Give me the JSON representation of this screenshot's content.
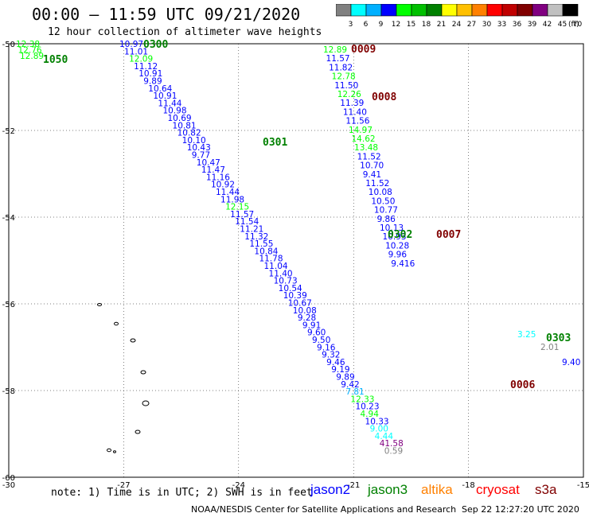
{
  "header": {
    "title": "00:00 – 11:59 UTC 09/21/2020",
    "subtitle": "12 hour collection of altimeter wave heights"
  },
  "colorbar": {
    "colors": [
      "#808080",
      "#00ffff",
      "#00b0ff",
      "#0000ff",
      "#00ff00",
      "#00c000",
      "#008000",
      "#ffff00",
      "#ffc000",
      "#ff8000",
      "#ff0000",
      "#c00000",
      "#800000",
      "#800080",
      "#c0c0c0",
      "#000000"
    ],
    "labels": [
      "3",
      "6",
      "9",
      "12",
      "15",
      "18",
      "21",
      "24",
      "27",
      "30",
      "33",
      "36",
      "39",
      "42",
      "45",
      "70"
    ],
    "unit": "(ft)"
  },
  "axes": {
    "lon_ticks": [
      -30,
      -27,
      -24,
      -21,
      -18,
      -15
    ],
    "lat_ticks": [
      -50,
      -52,
      -54,
      -56,
      -58,
      -60
    ],
    "lon_range": [
      -30,
      -15
    ],
    "lat_range": [
      -60,
      -50
    ]
  },
  "time_labels": [
    {
      "text": "0300",
      "color": "#008000"
    },
    {
      "text": "1050",
      "color": "#008000"
    },
    {
      "text": "0009",
      "color": "#800000"
    },
    {
      "text": "0008",
      "color": "#800000"
    },
    {
      "text": "0301",
      "color": "#008000"
    },
    {
      "text": "0302",
      "color": "#008000"
    },
    {
      "text": "0007",
      "color": "#800000"
    },
    {
      "text": "0303",
      "color": "#008000"
    },
    {
      "text": "0006",
      "color": "#800000"
    }
  ],
  "chart_data": {
    "type": "scatter",
    "title": "12 hour collection of altimeter wave heights",
    "units": "ft",
    "tracks": [
      {
        "name": "track-a",
        "values": [
          "10.97",
          "11.01",
          "12.09",
          "11.12",
          "10.91",
          "9.89",
          "10.64",
          "10.91",
          "11.44",
          "10.98",
          "10.69",
          "10.81",
          "10.82",
          "10.10",
          "10.43",
          "9.77",
          "10.47",
          "11.47",
          "11.16",
          "10.92",
          "11.44",
          "11.98",
          "12.15",
          "11.57",
          "11.54",
          "11.21",
          "11.32",
          "11.55",
          "10.84",
          "11.78",
          "11.04",
          "11.40",
          "10.73",
          "10.54",
          "10.39",
          "10.67",
          "10.08",
          "9.28",
          "9.91",
          "9.60",
          "9.50",
          "9.16",
          "9.32",
          "9.46",
          "9.19",
          "9.89",
          "9.42",
          "7.81",
          "12.33",
          "10.23",
          "4.94",
          "10.33",
          "9.00",
          "4.44",
          "41.58",
          "0.59"
        ],
        "colors": [
          "#0000ff",
          "#0000ff",
          "#00ff00",
          "#0000ff",
          "#0000ff",
          "#0000ff",
          "#0000ff",
          "#0000ff",
          "#0000ff",
          "#0000ff",
          "#0000ff",
          "#0000ff",
          "#0000ff",
          "#0000ff",
          "#0000ff",
          "#0000ff",
          "#0000ff",
          "#0000ff",
          "#0000ff",
          "#0000ff",
          "#0000ff",
          "#0000ff",
          "#00ff00",
          "#0000ff",
          "#0000ff",
          "#0000ff",
          "#0000ff",
          "#0000ff",
          "#0000ff",
          "#0000ff",
          "#0000ff",
          "#0000ff",
          "#0000ff",
          "#0000ff",
          "#0000ff",
          "#0000ff",
          "#0000ff",
          "#0000ff",
          "#0000ff",
          "#0000ff",
          "#0000ff",
          "#0000ff",
          "#0000ff",
          "#0000ff",
          "#0000ff",
          "#0000ff",
          "#0000ff",
          "#00b0ff",
          "#00ff00",
          "#0000ff",
          "#00ff00",
          "#0000ff",
          "#00ffff",
          "#00ffff",
          "#800080",
          "#808080"
        ]
      },
      {
        "name": "track-b",
        "values": [
          "12.89",
          "11.57",
          "11.82",
          "12.78",
          "11.50",
          "12.26",
          "11.39",
          "11.40",
          "11.56",
          "14.97",
          "14.62",
          "13.48",
          "11.52",
          "10.70",
          "9.41",
          "11.52",
          "10.08",
          "10.50",
          "10.77",
          "9.86",
          "10.13",
          "10.93",
          "10.28",
          "9.96",
          "9.416",
          "3.25",
          "2.01",
          "9.40"
        ],
        "colors": [
          "#00ff00",
          "#0000ff",
          "#0000ff",
          "#00ff00",
          "#0000ff",
          "#00ff00",
          "#0000ff",
          "#0000ff",
          "#0000ff",
          "#00ff00",
          "#00ff00",
          "#00ff00",
          "#0000ff",
          "#0000ff",
          "#0000ff",
          "#0000ff",
          "#0000ff",
          "#0000ff",
          "#0000ff",
          "#0000ff",
          "#0000ff",
          "#0000ff",
          "#0000ff",
          "#0000ff",
          "#0000ff",
          "#00ffff",
          "#808080",
          "#0000ff"
        ]
      },
      {
        "name": "track-c",
        "values": [
          "12.38",
          "12.76",
          "12.89"
        ],
        "colors": [
          "#00ff00",
          "#00ff00",
          "#00ff00"
        ]
      }
    ]
  },
  "footer": {
    "note": "note: 1) Time is in UTC; 2) SWH is in feet",
    "legend": [
      {
        "text": "jason2",
        "color": "#0000ff"
      },
      {
        "text": "jason3",
        "color": "#008000"
      },
      {
        "text": "altika",
        "color": "#ff8000"
      },
      {
        "text": "cryosat",
        "color": "#ff0000"
      },
      {
        "text": "s3a",
        "color": "#800000"
      }
    ],
    "credit": "NOAA/NESDIS Center for Satellite Applications and Research",
    "stamp": "Sep 22 12:27:20 UTC 2020"
  }
}
